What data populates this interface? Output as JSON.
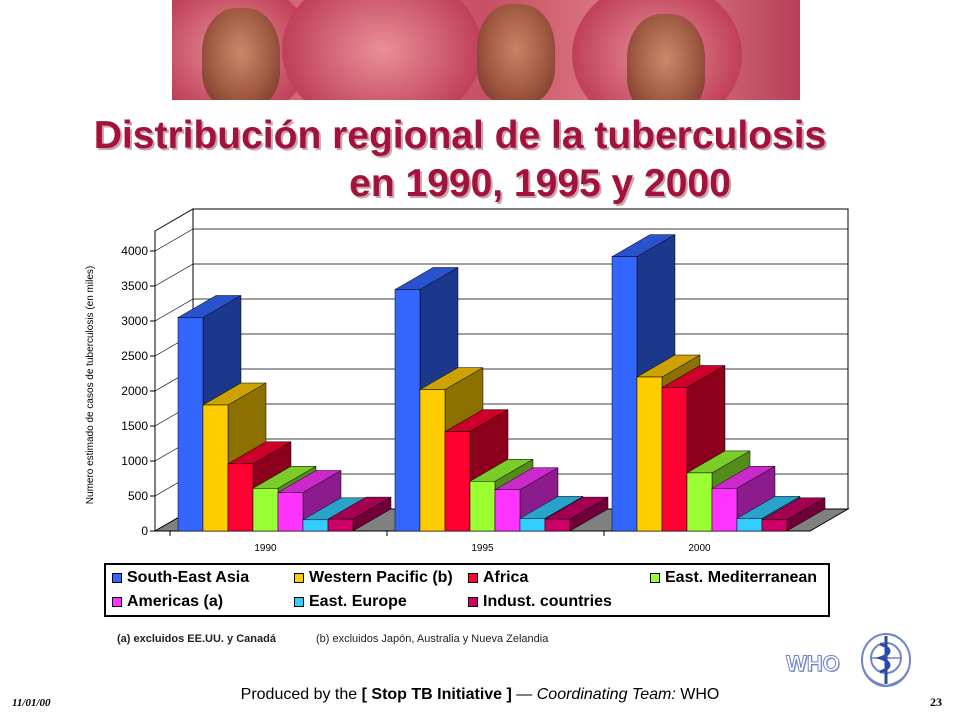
{
  "slide": {
    "title_line1": "Distribución regional de la tuberculosis",
    "title_line2": "en 1990, 1995 y 2000",
    "note_a": "(a) excluidos EE.UU. y Canadá",
    "note_b": "(b) excluidos Japón, Australia y Nueva Zelandia",
    "who_text": "WHO",
    "footer_prefix": "Produced by the",
    "footer_initiative": "[ Stop TB Initiative ]",
    "footer_dash": "—",
    "footer_team_label": "Coordinating Team:",
    "footer_team": "WHO",
    "date": "11/01/00",
    "slide_number": "23"
  },
  "chart_data": {
    "type": "bar",
    "categories": [
      "1990",
      "1995",
      "2000"
    ],
    "ylabel": "Numero estimado de casos de tuberculosis (en miles)",
    "ylim": [
      0,
      4000
    ],
    "yticks": [
      0,
      500,
      1000,
      1500,
      2000,
      2500,
      3000,
      3500,
      4000
    ],
    "grid": true,
    "legend_position": "bottom",
    "series": [
      {
        "name": "South-East Asia",
        "color": "#3366ff",
        "values": [
          3050,
          3450,
          3920
        ]
      },
      {
        "name": "Western Pacific (b)",
        "color": "#ffcc00",
        "values": [
          1800,
          2020,
          2200
        ]
      },
      {
        "name": "Africa",
        "color": "#ff0033",
        "values": [
          960,
          1420,
          2050
        ]
      },
      {
        "name": "East. Mediterranean",
        "color": "#99ff33",
        "values": [
          610,
          710,
          830
        ]
      },
      {
        "name": "Americas (a)",
        "color": "#ff33ff",
        "values": [
          550,
          590,
          610
        ]
      },
      {
        "name": "East. Europe",
        "color": "#33ccff",
        "values": [
          160,
          180,
          180
        ]
      },
      {
        "name": "Indust. countries",
        "color": "#cc0066",
        "values": [
          170,
          170,
          160
        ]
      }
    ]
  }
}
